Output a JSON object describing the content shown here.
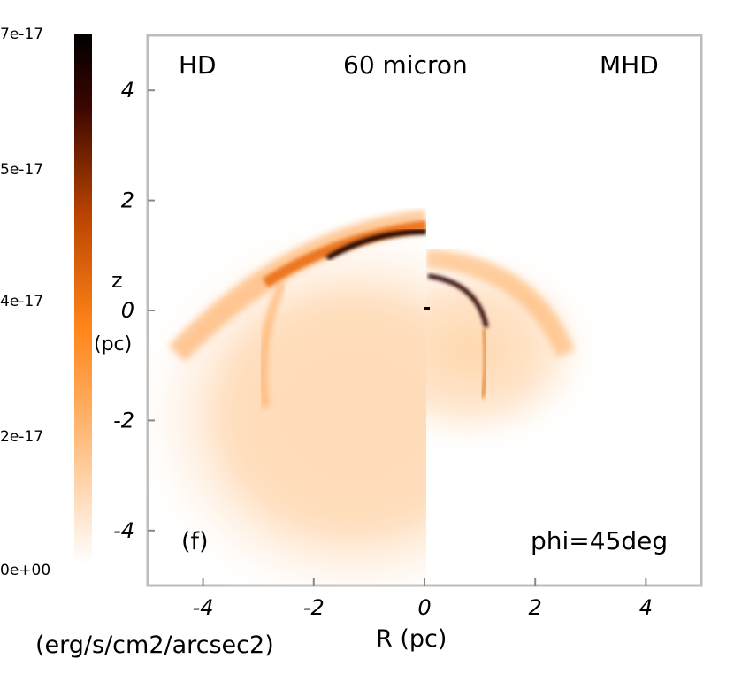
{
  "chart_data": {
    "type": "heatmap",
    "panel_label": "(f)",
    "left_label": "HD",
    "center_label": "60 micron",
    "right_label": "MHD",
    "angle_label": "phi=45deg",
    "xlabel": "R (pc)",
    "ylabel_top": "z",
    "ylabel_bottom": "(pc)",
    "xlim": [
      -5,
      5
    ],
    "ylim": [
      -5,
      5
    ],
    "xticks": [
      -4,
      -2,
      0,
      2,
      4
    ],
    "yticks": [
      4,
      2,
      0,
      -2,
      -4
    ],
    "colorbar": {
      "label": "(erg/s/cm2/arcsec2)",
      "min": 0,
      "max": 7e-17,
      "ticks": [
        {
          "value": 7e-17,
          "label": "7e-17"
        },
        {
          "value": 5e-17,
          "label": "5e-17"
        },
        {
          "value": 4e-17,
          "label": "4e-17"
        },
        {
          "value": 2e-17,
          "label": "2e-17"
        },
        {
          "value": 0,
          "label": "0e+00"
        }
      ],
      "colors": [
        "#ffffff",
        "#ff8a1e",
        "#c24800",
        "#4a0800",
        "#000000"
      ]
    }
  }
}
